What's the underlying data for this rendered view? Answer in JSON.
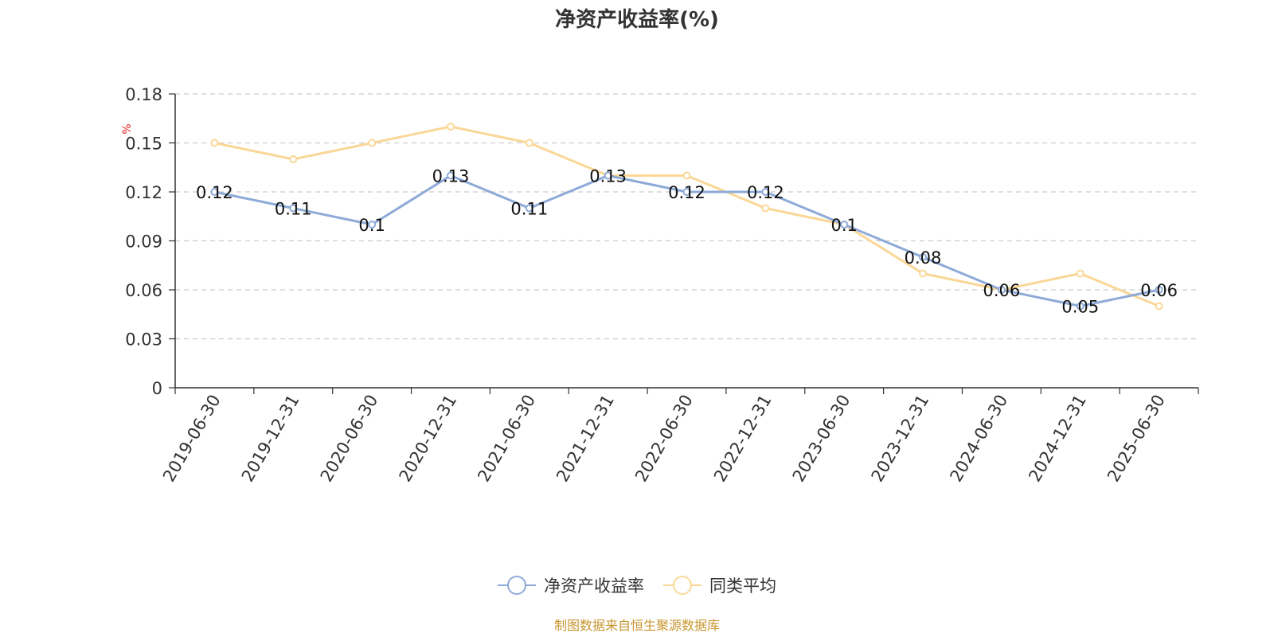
{
  "chart_data": {
    "type": "line",
    "title": "净资产收益率(%)",
    "ylabel": "%",
    "xlabel": "",
    "categories": [
      "2019-06-30",
      "2019-12-31",
      "2020-06-30",
      "2020-12-31",
      "2021-06-30",
      "2021-12-31",
      "2022-06-30",
      "2022-12-31",
      "2023-06-30",
      "2023-12-31",
      "2024-06-30",
      "2024-12-31",
      "2025-06-30"
    ],
    "series": [
      {
        "name": "净资产收益率",
        "color": "#8eaad8",
        "values": [
          0.12,
          0.11,
          0.1,
          0.13,
          0.11,
          0.13,
          0.12,
          0.12,
          0.1,
          0.08,
          0.06,
          0.05,
          0.06
        ],
        "labels": [
          "0.12",
          "0.11",
          "0.1",
          "0.13",
          "0.11",
          "0.13",
          "0.12",
          "0.12",
          "0.1",
          "0.08",
          "0.06",
          "0.05",
          "0.06"
        ],
        "show_labels": true
      },
      {
        "name": "同类平均",
        "color": "#fad797",
        "values": [
          0.15,
          0.14,
          0.15,
          0.16,
          0.15,
          0.13,
          0.13,
          0.11,
          0.1,
          0.07,
          0.06,
          0.07,
          0.05
        ],
        "show_labels": false
      }
    ],
    "yticks": [
      "0",
      "0.03",
      "0.06",
      "0.09",
      "0.12",
      "0.15",
      "0.18"
    ],
    "ylim": [
      0,
      0.18
    ],
    "grid": true,
    "legend_position": "bottom-center"
  },
  "footer": {
    "source_note": "制图数据来自恒生聚源数据库"
  }
}
